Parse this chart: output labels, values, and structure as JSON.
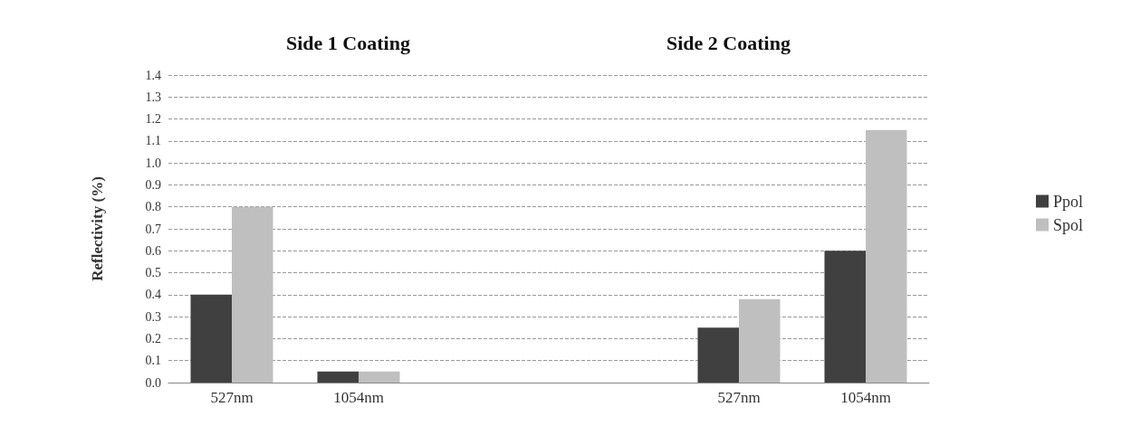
{
  "chart_data": {
    "type": "bar",
    "ylabel": "Reflectivity (%)",
    "annotations": [
      "Side 1 Coating",
      "Side 2 Coating"
    ],
    "categories": [
      "527nm",
      "1054nm",
      null,
      null,
      "527nm",
      "1054nm"
    ],
    "series": [
      {
        "name": "Ppol",
        "color": "#404040",
        "values": [
          0.4,
          0.05,
          null,
          null,
          0.25,
          0.6
        ]
      },
      {
        "name": "Spol",
        "color": "#bfbfbf",
        "values": [
          0.8,
          0.05,
          null,
          null,
          0.38,
          1.15
        ]
      }
    ],
    "ylim": [
      0,
      1.4
    ],
    "yticks": [
      {
        "value": 0,
        "label": "0.0"
      },
      0.1,
      0.2,
      0.3,
      0.4,
      0.5,
      0.6,
      0.7,
      0.8,
      0.9,
      {
        "value": 1,
        "label": "1.0"
      },
      1.1,
      1.2,
      1.3,
      1.4
    ],
    "grid": "y",
    "legend": "right"
  }
}
